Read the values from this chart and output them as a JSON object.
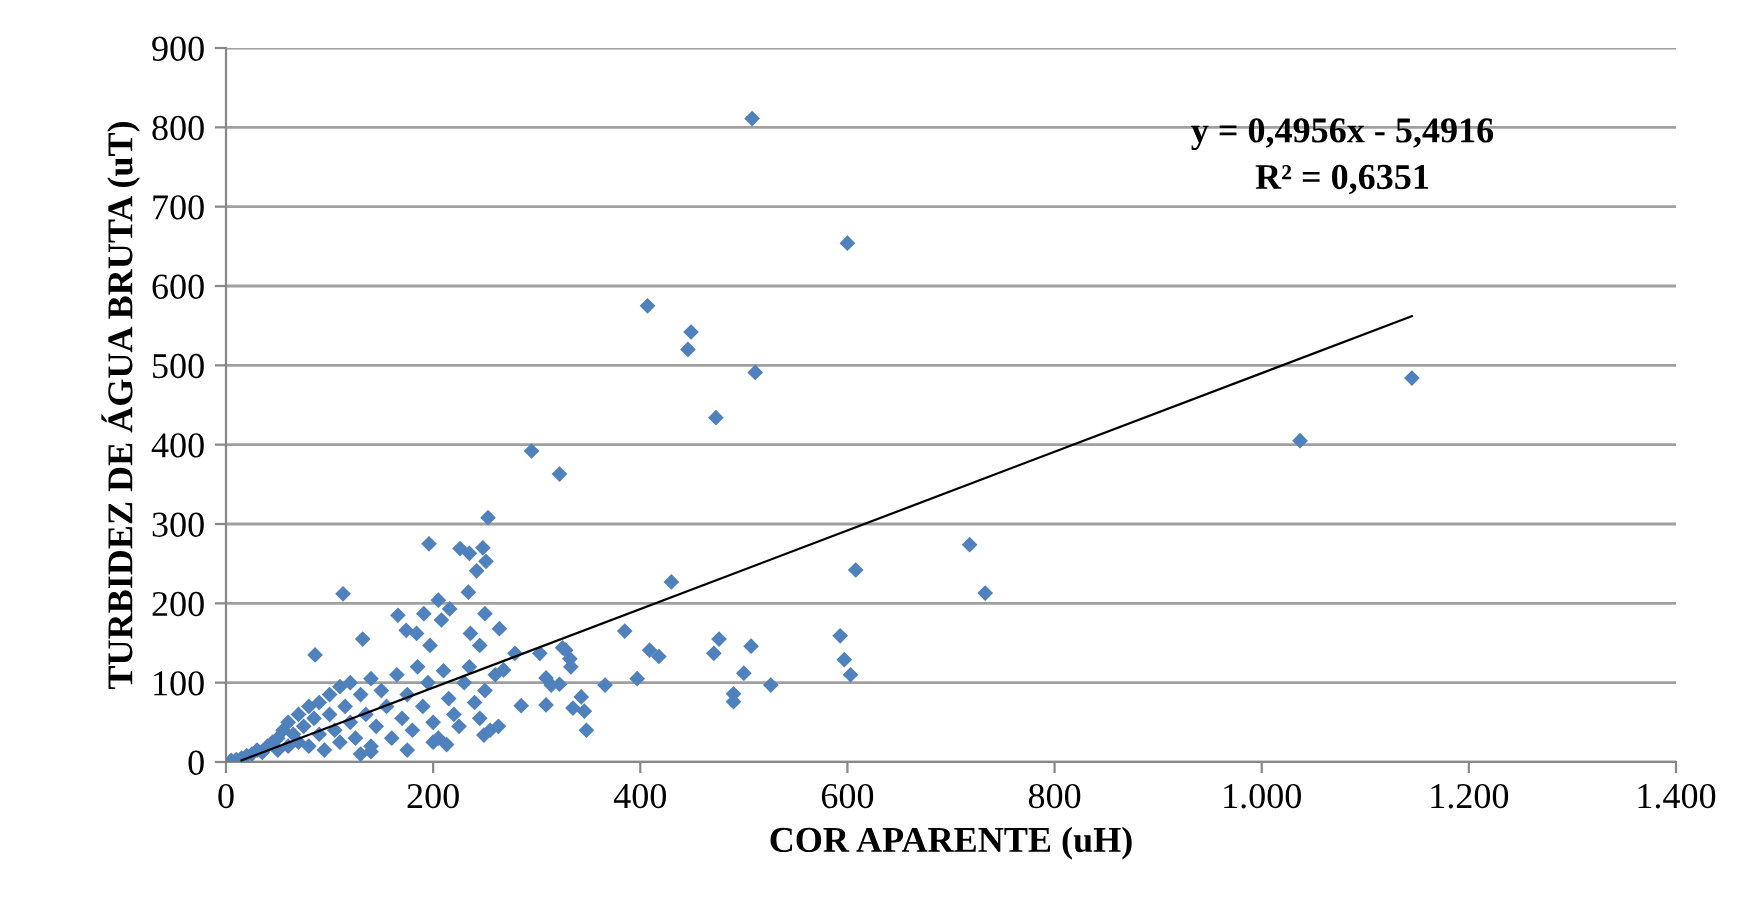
{
  "chart_data": {
    "type": "scatter",
    "xlabel": "COR APARENTE (uH)",
    "ylabel": "TURBIDEZ DE ÁGUA BRUTA (uT)",
    "annotations": [
      "y = 0,4956x - 5,4916",
      "R² = 0,6351"
    ],
    "xlim": [
      0,
      1400
    ],
    "xticks": [
      0,
      200,
      400,
      600,
      800,
      {
        "value": 1000,
        "label": "1.000"
      },
      {
        "value": 1200,
        "label": "1.200"
      },
      {
        "value": 1400,
        "label": "1.400"
      }
    ],
    "ylim": [
      0,
      900
    ],
    "yticks": [
      0,
      100,
      200,
      300,
      400,
      500,
      600,
      700,
      800,
      900
    ],
    "grid": "y",
    "legend": false,
    "series": [
      {
        "color": "#4f81bd",
        "marker": "diamond",
        "x": [
          5,
          10,
          15,
          20,
          25,
          30,
          35,
          40,
          45,
          50,
          50,
          55,
          60,
          60,
          65,
          70,
          70,
          75,
          80,
          80,
          85,
          90,
          90,
          95,
          100,
          100,
          105,
          110,
          110,
          115,
          120,
          120,
          125,
          130,
          135,
          140,
          140,
          145,
          150,
          155,
          160,
          165,
          170,
          175,
          180,
          185,
          190,
          195,
          200,
          205,
          210,
          215,
          220,
          225,
          230,
          235,
          240,
          245,
          250,
          255,
          260,
          175,
          130,
          200,
          508,
          600,
          407,
          449,
          446,
          511,
          473,
          322,
          718,
          733,
          608,
          430,
          385,
          409,
          418,
          476,
          471,
          507,
          593,
          597,
          603,
          500,
          526,
          490,
          490,
          397,
          366,
          328,
          332,
          333,
          322,
          343,
          335,
          346,
          348,
          1145,
          1037,
          295,
          253,
          196,
          226,
          235,
          248,
          251,
          242,
          113,
          234,
          205,
          166,
          216,
          250,
          191,
          174,
          184,
          208,
          264,
          132,
          236,
          86,
          197,
          245,
          279,
          303,
          325,
          268,
          309,
          314,
          285,
          309,
          263,
          249,
          213,
          140
        ],
        "values": [
          2,
          3,
          5,
          8,
          10,
          15,
          12,
          20,
          25,
          30,
          15,
          40,
          20,
          50,
          35,
          60,
          25,
          45,
          70,
          20,
          55,
          35,
          75,
          15,
          60,
          85,
          40,
          25,
          95,
          70,
          50,
          100,
          30,
          85,
          60,
          105,
          20,
          45,
          90,
          70,
          30,
          110,
          55,
          85,
          40,
          120,
          70,
          100,
          50,
          30,
          115,
          80,
          60,
          45,
          100,
          120,
          75,
          55,
          90,
          40,
          110,
          15,
          10,
          25,
          811,
          654,
          575,
          542,
          520,
          491,
          434,
          363,
          274,
          213,
          242,
          227,
          165,
          141,
          133,
          155,
          137,
          146,
          159,
          129,
          110,
          112,
          97,
          86,
          76,
          105,
          97,
          141,
          130,
          120,
          98,
          82,
          68,
          64,
          40,
          484,
          405,
          392,
          308,
          275,
          269,
          263,
          270,
          253,
          241,
          212,
          214,
          204,
          185,
          193,
          187,
          187,
          166,
          162,
          179,
          168,
          155,
          162,
          135,
          147,
          147,
          137,
          137,
          144,
          116,
          106,
          97,
          71,
          72,
          45,
          34,
          22,
          13
        ]
      },
      {
        "type": "line",
        "color": "#000000",
        "line_style": "solid",
        "x": [
          15,
          1145
        ],
        "values": [
          2,
          562
        ]
      }
    ]
  }
}
